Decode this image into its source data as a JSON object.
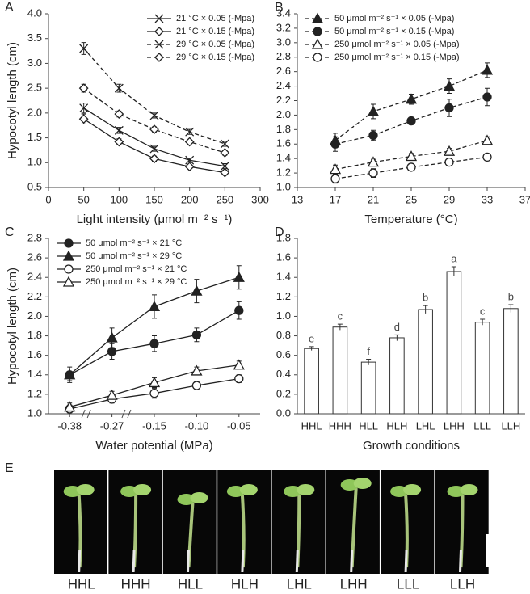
{
  "chart_data": [
    {
      "type": "line",
      "panel": "A",
      "ylabel": "Hypocotyl length (cm)",
      "xlabel": "Light intensity (μmol m⁻² s⁻¹)",
      "x": [
        50,
        100,
        150,
        200,
        250
      ],
      "xlim": [
        0,
        300
      ],
      "xticks": [
        0,
        50,
        100,
        150,
        200,
        250,
        300
      ],
      "ylim": [
        0.5,
        4
      ],
      "yticks": [
        0.5,
        {
          "value": 1,
          "label": "1.0"
        },
        1.5,
        {
          "value": 2,
          "label": "2.0"
        },
        2.5,
        {
          "value": 3,
          "label": "3.0"
        },
        3.5,
        {
          "value": 4,
          "label": "4.0"
        }
      ],
      "legend": "upper right",
      "series": [
        {
          "name": "21 °C × 0.05 (-Mpa)",
          "color": "#222222",
          "marker": "x",
          "filled": false,
          "dashed": false,
          "values": [
            2.1,
            1.65,
            1.28,
            1.05,
            0.93
          ],
          "errors": [
            0.1,
            0.06,
            0.05,
            0.04,
            0.05
          ]
        },
        {
          "name": "21 °C × 0.15 (-Mpa)",
          "color": "#222222",
          "marker": "diamond",
          "filled": false,
          "dashed": false,
          "values": [
            1.88,
            1.42,
            1.08,
            0.92,
            0.8
          ],
          "errors": [
            0.1,
            0.06,
            0.05,
            0.04,
            0.05
          ]
        },
        {
          "name": "29 °C × 0.05 (-Mpa)",
          "color": "#222222",
          "marker": "x",
          "filled": false,
          "dashed": true,
          "values": [
            3.3,
            2.5,
            1.95,
            1.62,
            1.38
          ],
          "errors": [
            0.12,
            0.08,
            0.05,
            0.05,
            0.05
          ]
        },
        {
          "name": "29 °C × 0.15 (-Mpa)",
          "color": "#222222",
          "marker": "diamond",
          "filled": false,
          "dashed": true,
          "values": [
            2.5,
            1.98,
            1.67,
            1.42,
            1.2
          ],
          "errors": [
            0.08,
            0.06,
            0.05,
            0.04,
            0.05
          ]
        }
      ]
    },
    {
      "type": "line",
      "panel": "B",
      "xlabel": "Temperature (°C)",
      "x": [
        17,
        21,
        25,
        29,
        33
      ],
      "xlim": [
        13,
        37
      ],
      "xticks": [
        13,
        17,
        21,
        25,
        29,
        33,
        37
      ],
      "ylim": [
        1,
        3.4
      ],
      "yticks": [
        {
          "value": 1,
          "label": "1.0"
        },
        1.2,
        1.4,
        1.6,
        1.8,
        {
          "value": 2,
          "label": "2.0"
        },
        2.2,
        2.4,
        2.6,
        2.8,
        {
          "value": 3,
          "label": "3.0"
        },
        3.2,
        3.4
      ],
      "legend": "upper left",
      "series": [
        {
          "name": "50 μmol m⁻² s⁻¹ × 0.05 (-Mpa)",
          "color": "#222222",
          "marker": "triangle",
          "filled": true,
          "dashed": true,
          "values": [
            1.65,
            2.05,
            2.22,
            2.4,
            2.62
          ],
          "errors": [
            0.1,
            0.1,
            0.07,
            0.1,
            0.1
          ]
        },
        {
          "name": "50 μmol m⁻² s⁻¹ × 0.15 (-Mpa)",
          "color": "#222222",
          "marker": "circle",
          "filled": true,
          "dashed": true,
          "values": [
            1.6,
            1.72,
            1.92,
            2.1,
            2.25
          ],
          "errors": [
            0.1,
            0.07,
            0.05,
            0.12,
            0.12
          ]
        },
        {
          "name": "250 μmol m⁻² s⁻¹ × 0.05 (-Mpa)",
          "color": "#222222",
          "marker": "triangle",
          "filled": false,
          "dashed": true,
          "values": [
            1.25,
            1.35,
            1.43,
            1.5,
            1.65
          ],
          "errors": [
            0.06,
            0.04,
            0.04,
            0.04,
            0.05
          ]
        },
        {
          "name": "250 μmol m⁻² s⁻¹ × 0.15 (-Mpa)",
          "color": "#222222",
          "marker": "circle",
          "filled": false,
          "dashed": true,
          "values": [
            1.12,
            1.2,
            1.28,
            1.35,
            1.42
          ],
          "errors": [
            0.06,
            0.06,
            0.04,
            0.04,
            0.04
          ]
        }
      ]
    },
    {
      "type": "line",
      "panel": "C",
      "ylabel": "Hypocotyl length (cm)",
      "xlabel": "Water potential (MPa)",
      "categories": [
        "-0.38",
        "-0.27",
        "-0.15",
        "-0.10",
        "-0.05"
      ],
      "ylim": [
        1,
        2.8
      ],
      "yticks": [
        {
          "value": 1,
          "label": "1.0"
        },
        1.2,
        1.4,
        1.6,
        1.8,
        {
          "value": 2,
          "label": "2.0"
        },
        2.2,
        2.4,
        2.6,
        2.8
      ],
      "legend": "upper left",
      "series": [
        {
          "name": "50 μmol m⁻² s⁻¹ × 21 °C",
          "color": "#222222",
          "marker": "circle",
          "filled": true,
          "dashed": false,
          "values": [
            1.4,
            1.64,
            1.72,
            1.81,
            2.06
          ],
          "errors": [
            0.08,
            0.08,
            0.08,
            0.07,
            0.09
          ]
        },
        {
          "name": "50 μmol m⁻² s⁻¹ × 29 °C",
          "color": "#222222",
          "marker": "triangle",
          "filled": true,
          "dashed": false,
          "values": [
            1.4,
            1.78,
            2.1,
            2.26,
            2.4
          ],
          "errors": [
            0.06,
            0.1,
            0.12,
            0.12,
            0.12
          ]
        },
        {
          "name": "250 μmol m⁻² s⁻¹ × 21 °C",
          "color": "#222222",
          "marker": "circle",
          "filled": false,
          "dashed": false,
          "values": [
            1.05,
            1.15,
            1.21,
            1.29,
            1.36
          ],
          "errors": [
            0.04,
            0.04,
            0.05,
            0.04,
            0.04
          ]
        },
        {
          "name": "250 μmol m⁻² s⁻¹ × 29 °C",
          "color": "#222222",
          "marker": "triangle",
          "filled": false,
          "dashed": false,
          "values": [
            1.07,
            1.19,
            1.32,
            1.44,
            1.5
          ],
          "errors": [
            0.04,
            0.04,
            0.05,
            0.04,
            0.04
          ]
        }
      ]
    },
    {
      "type": "bar",
      "panel": "D",
      "xlabel": "Growth conditions",
      "categories": [
        "HHL",
        "HHH",
        "HLL",
        "HLH",
        "LHL",
        "LHH",
        "LLL",
        "LLH"
      ],
      "values": [
        0.67,
        0.89,
        0.53,
        0.78,
        1.07,
        1.46,
        0.94,
        1.08
      ],
      "errors": [
        0.02,
        0.03,
        0.03,
        0.03,
        0.04,
        0.05,
        0.03,
        0.04
      ],
      "annotations": [
        "e",
        "c",
        "f",
        "d",
        "b",
        "a",
        "c",
        "b"
      ],
      "color": "#ffffff",
      "ylim": [
        0,
        1.8
      ],
      "yticks": [
        {
          "value": 0,
          "label": "0.0"
        },
        0.2,
        0.4,
        0.6,
        0.8,
        {
          "value": 1,
          "label": "1.0"
        },
        1.2,
        1.4,
        1.6,
        1.8
      ]
    }
  ],
  "photo_panel": {
    "panel": "E",
    "labels": [
      "HHL",
      "HHH",
      "HLL",
      "HLH",
      "LHL",
      "LHH",
      "LLL",
      "LLH"
    ]
  }
}
